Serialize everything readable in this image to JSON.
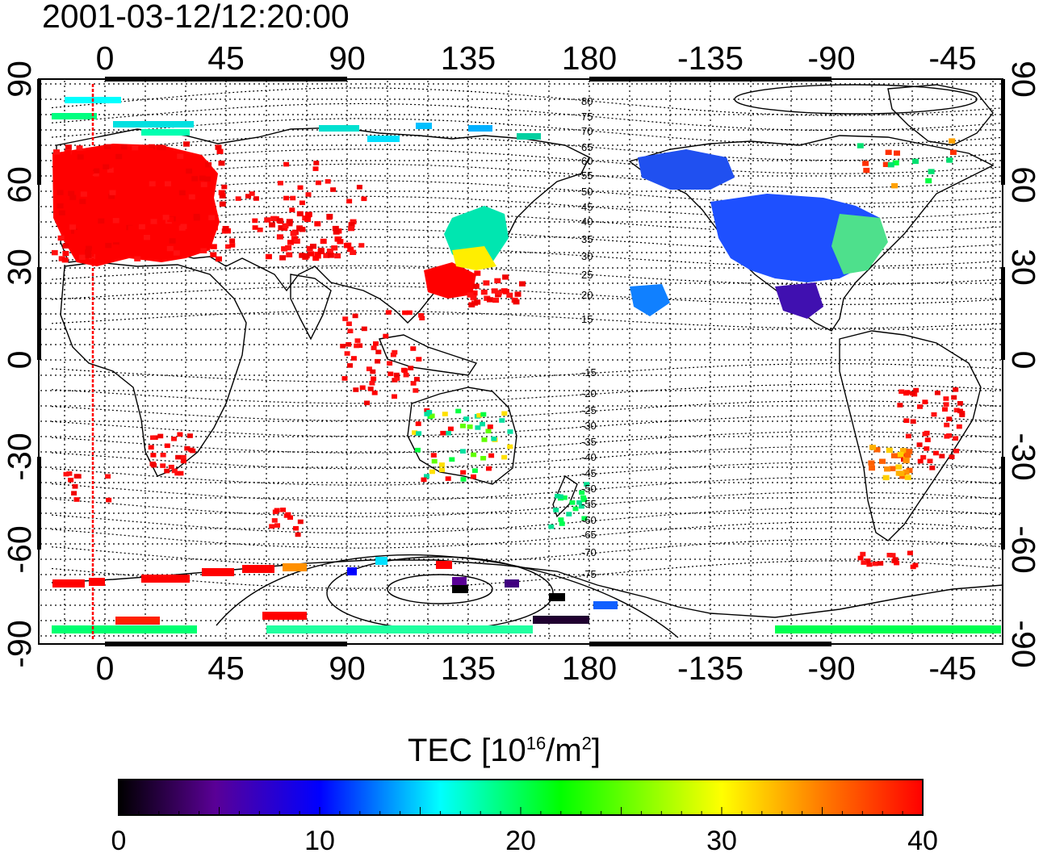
{
  "title": "2001-03-12/12:20:00",
  "map": {
    "lon_ticks": [
      "0",
      "45",
      "90",
      "135",
      "180",
      "-135",
      "-90",
      "-45"
    ],
    "lat_ticks": [
      "90",
      "60",
      "30",
      "0",
      "-30",
      "-60",
      "-90"
    ],
    "mlat_labels": [
      "80",
      "75",
      "70",
      "65",
      "60",
      "55",
      "50",
      "45",
      "40",
      "35",
      "30",
      "25",
      "20",
      "15",
      "-15",
      "-20",
      "-25",
      "-30",
      "-35",
      "-40",
      "-45",
      "-50",
      "-55",
      "-60",
      "-65",
      "-70",
      "-75"
    ],
    "colors": {
      "land_outline": "#000000",
      "grid": "#000000",
      "terminator": "#ff0000"
    }
  },
  "colorbar": {
    "title_prefix": "TEC  [10",
    "title_sup1": "16",
    "title_mid": "/m",
    "title_sup2": "2",
    "title_suffix": "]",
    "ticks": [
      "0",
      "10",
      "20",
      "30",
      "40"
    ],
    "range": [
      0,
      40
    ],
    "colormap": [
      "#000000",
      "#5a0096",
      "#0000ff",
      "#00ffff",
      "#00ff00",
      "#ffff00",
      "#ff8000",
      "#ff0000"
    ]
  }
}
